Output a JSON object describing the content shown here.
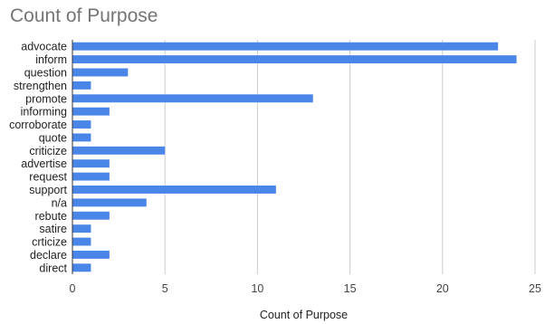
{
  "chart_data": {
    "type": "bar",
    "orientation": "horizontal",
    "title": "Count of Purpose",
    "xlabel": "Count of Purpose",
    "ylabel": "",
    "categories": [
      "advocate",
      "inform",
      "question",
      "strengthen",
      "promote",
      "informing",
      "corroborate",
      "quote",
      "criticize",
      "advertise",
      "request",
      "support",
      "n/a",
      "rebute",
      "satire",
      "crticize",
      "declare",
      "direct"
    ],
    "values": [
      23,
      24,
      3,
      1,
      13,
      2,
      1,
      1,
      5,
      2,
      2,
      11,
      4,
      2,
      1,
      1,
      2,
      1
    ],
    "xlim": [
      0,
      25
    ],
    "xticks": [
      0,
      5,
      10,
      15,
      20,
      25
    ],
    "grid": true,
    "legend": "none",
    "bar_color": "#4a86e8",
    "grid_color": "#cccccc",
    "axis_color": "#333333",
    "label_color": "#222222"
  }
}
